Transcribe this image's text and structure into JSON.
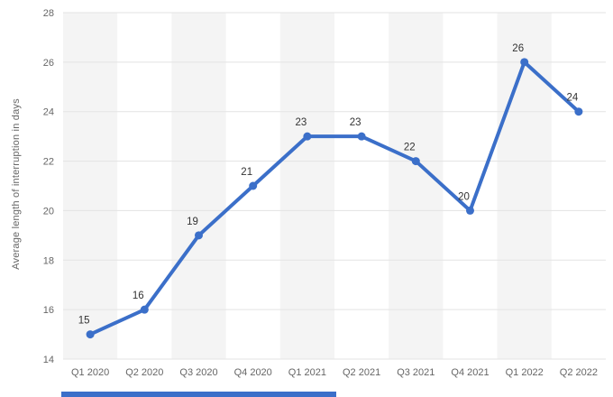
{
  "chart_data": {
    "type": "line",
    "categories": [
      "Q1 2020",
      "Q2 2020",
      "Q3 2020",
      "Q4 2020",
      "Q1 2021",
      "Q2 2021",
      "Q3 2021",
      "Q4 2021",
      "Q1 2022",
      "Q2 2022"
    ],
    "values": [
      15,
      16,
      19,
      21,
      23,
      23,
      22,
      20,
      26,
      24
    ],
    "title": "",
    "xlabel": "",
    "ylabel": "Average length of interruption in days",
    "ylim": [
      14,
      28
    ],
    "ytick_step": 2,
    "grid": true,
    "legend": "none",
    "colors": {
      "line": "#3b6fc9",
      "marker": "#3b6fc9",
      "band": "#f4f4f4",
      "gridline": "#e3e3e3",
      "tick_label": "#666666",
      "value_label": "#333333",
      "bottom_accent": "#3b6fc9"
    }
  }
}
